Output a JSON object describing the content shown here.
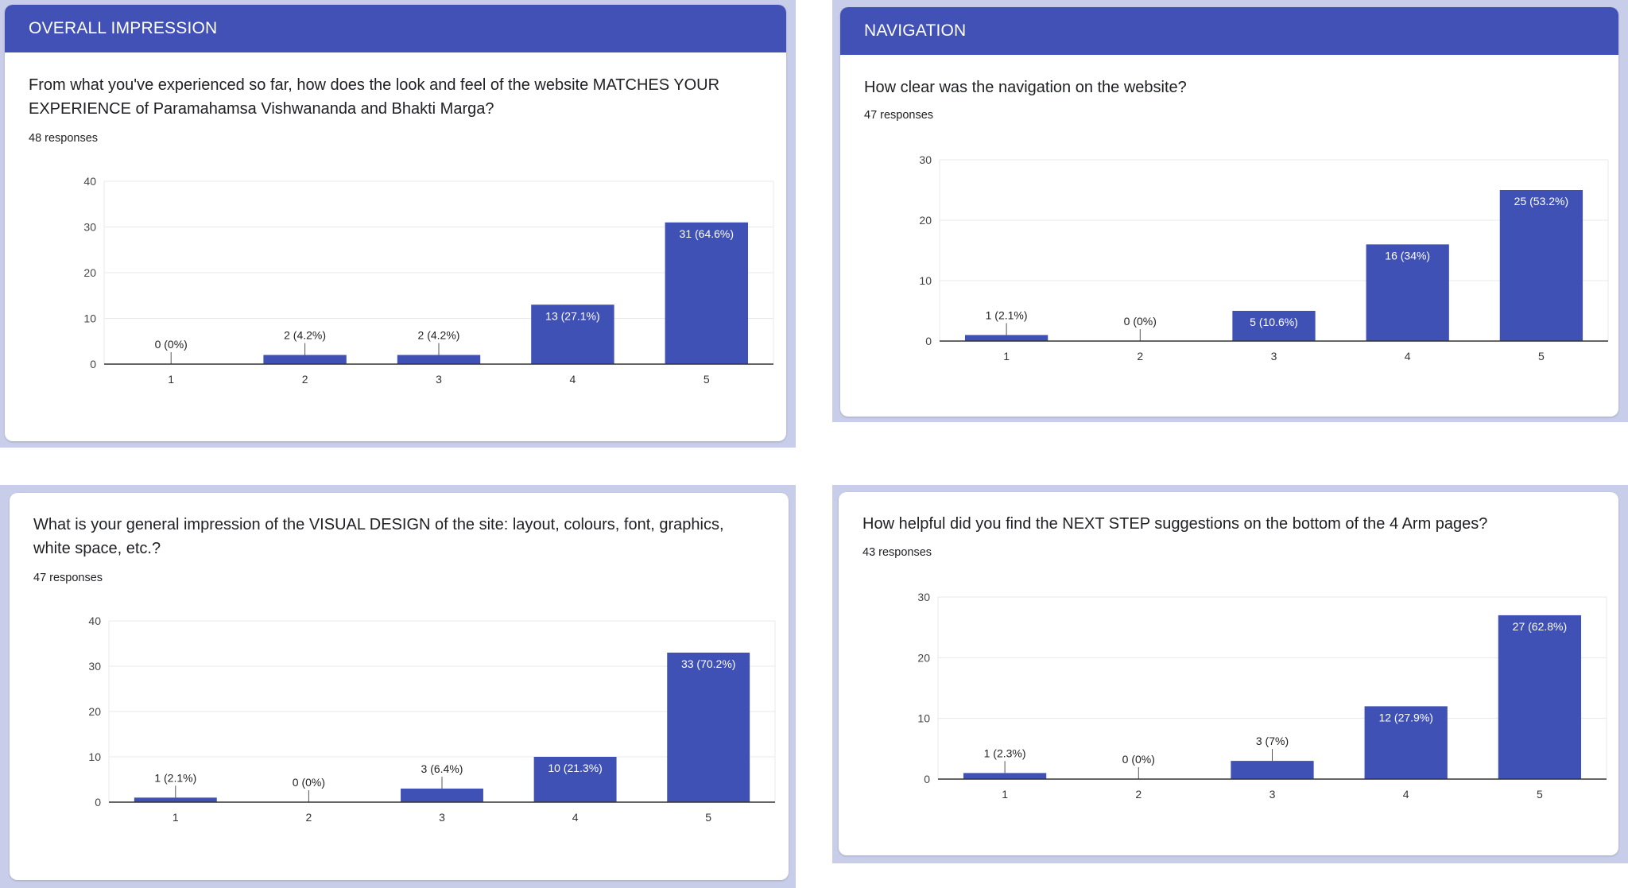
{
  "colors": {
    "bar": "#3f51b5",
    "header": "#4151b5",
    "frame": "#c8cde9",
    "grid": "#e8e8e8",
    "axis": "#333333"
  },
  "cards": [
    {
      "header": "OVERALL IMPRESSION",
      "question": "From what you've experienced so far, how does the look and feel of the website MATCHES YOUR EXPERIENCE of Paramahamsa Vishwananda and Bhakti Marga?",
      "responses": "48 responses",
      "chart_data": {
        "type": "bar",
        "categories": [
          "1",
          "2",
          "3",
          "4",
          "5"
        ],
        "values": [
          0,
          2,
          2,
          13,
          31
        ],
        "labels": [
          "0 (0%)",
          "2 (4.2%)",
          "2 (4.2%)",
          "13 (27.1%)",
          "31 (64.6%)"
        ],
        "ylim": [
          0,
          40
        ],
        "yticks": [
          0,
          10,
          20,
          30,
          40
        ],
        "grid": true
      }
    },
    {
      "header": "NAVIGATION",
      "question": "How clear was the navigation on the website?",
      "responses": "47 responses",
      "chart_data": {
        "type": "bar",
        "categories": [
          "1",
          "2",
          "3",
          "4",
          "5"
        ],
        "values": [
          1,
          0,
          5,
          16,
          25
        ],
        "labels": [
          "1 (2.1%)",
          "0 (0%)",
          "5 (10.6%)",
          "16 (34%)",
          "25 (53.2%)"
        ],
        "ylim": [
          0,
          30
        ],
        "yticks": [
          0,
          10,
          20,
          30
        ],
        "grid": true
      }
    },
    {
      "header": "",
      "question": "What is your general impression of the VISUAL DESIGN of the site: layout, colours, font, graphics, white space, etc.?",
      "responses": "47 responses",
      "chart_data": {
        "type": "bar",
        "categories": [
          "1",
          "2",
          "3",
          "4",
          "5"
        ],
        "values": [
          1,
          0,
          3,
          10,
          33
        ],
        "labels": [
          "1 (2.1%)",
          "0 (0%)",
          "3 (6.4%)",
          "10 (21.3%)",
          "33 (70.2%)"
        ],
        "ylim": [
          0,
          40
        ],
        "yticks": [
          0,
          10,
          20,
          30,
          40
        ],
        "grid": true
      }
    },
    {
      "header": "",
      "question": "How helpful did you find the NEXT STEP suggestions on the bottom of the 4 Arm pages?",
      "responses": "43 responses",
      "chart_data": {
        "type": "bar",
        "categories": [
          "1",
          "2",
          "3",
          "4",
          "5"
        ],
        "values": [
          1,
          0,
          3,
          12,
          27
        ],
        "labels": [
          "1 (2.3%)",
          "0 (0%)",
          "3 (7%)",
          "12 (27.9%)",
          "27 (62.8%)"
        ],
        "ylim": [
          0,
          30
        ],
        "yticks": [
          0,
          10,
          20,
          30
        ],
        "grid": true
      }
    }
  ]
}
